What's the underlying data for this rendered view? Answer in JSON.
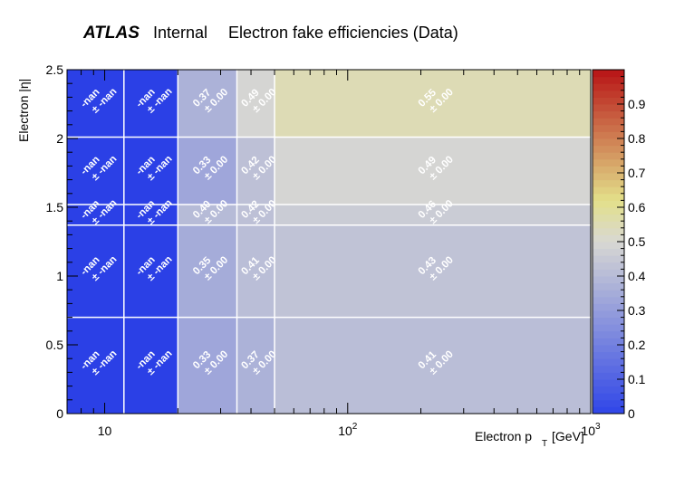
{
  "header": {
    "experiment": "ATLAS",
    "status": "Internal",
    "title": "Electron fake efficiencies (Data)"
  },
  "chart_data": {
    "type": "heatmap",
    "title": "Electron fake efficiencies (Data)",
    "xlabel": "Electron p",
    "xlabel_sub": "T",
    "xlabel_unit": "[GeV]",
    "ylabel": "Electron |η|",
    "x_scale": "log",
    "xlim": [
      7,
      1000
    ],
    "ylim": [
      0,
      2.5
    ],
    "x_edges": [
      7,
      12,
      20,
      35,
      50,
      1000
    ],
    "y_edges": [
      0,
      0.7,
      1.37,
      1.52,
      2.01,
      2.5
    ],
    "x_tick_labels": [
      {
        "value": 10,
        "base": "10",
        "exp": ""
      },
      {
        "value": 100,
        "base": "10",
        "exp": "2"
      },
      {
        "value": 1000,
        "base": "10",
        "exp": "3"
      }
    ],
    "y_tick_labels": [
      "0",
      "0.5",
      "1",
      "1.5",
      "2",
      "2.5"
    ],
    "z_range": [
      0,
      1
    ],
    "z_tick_labels": [
      "0",
      "0.1",
      "0.2",
      "0.3",
      "0.4",
      "0.5",
      "0.6",
      "0.7",
      "0.8",
      "0.9"
    ],
    "cells": [
      [
        null,
        null,
        0.33,
        0.37,
        0.41
      ],
      [
        null,
        null,
        0.35,
        0.41,
        0.43
      ],
      [
        null,
        null,
        0.4,
        0.42,
        0.46
      ],
      [
        null,
        null,
        0.33,
        0.42,
        0.49
      ],
      [
        null,
        null,
        0.37,
        0.49,
        0.55
      ]
    ],
    "cell_labels": [
      [
        [
          "-nan",
          "± -nan"
        ],
        [
          "-nan",
          "± -nan"
        ],
        [
          "0.33",
          "± 0.00"
        ],
        [
          "0.37",
          "± 0.00"
        ],
        [
          "0.41",
          "± 0.00"
        ]
      ],
      [
        [
          "-nan",
          "± -nan"
        ],
        [
          "-nan",
          "± -nan"
        ],
        [
          "0.35",
          "± 0.00"
        ],
        [
          "0.41",
          "± 0.00"
        ],
        [
          "0.43",
          "± 0.00"
        ]
      ],
      [
        [
          "-nan",
          "± -nan"
        ],
        [
          "-nan",
          "± -nan"
        ],
        [
          "0.40",
          "± 0.00"
        ],
        [
          "0.42",
          "± 0.00"
        ],
        [
          "0.46",
          "± 0.00"
        ]
      ],
      [
        [
          "-nan",
          "± -nan"
        ],
        [
          "-nan",
          "± -nan"
        ],
        [
          "0.33",
          "± 0.00"
        ],
        [
          "0.42",
          "± 0.00"
        ],
        [
          "0.49",
          "± 0.00"
        ]
      ],
      [
        [
          "-nan",
          "± -nan"
        ],
        [
          "-nan",
          "± -nan"
        ],
        [
          "0.37",
          "± 0.00"
        ],
        [
          "0.49",
          "± 0.00"
        ],
        [
          "0.55",
          "± 0.00"
        ]
      ]
    ],
    "grid": true,
    "colors": {
      "nan": "#2b40e6",
      "low": "#2f45e8",
      "mid": "#d8d8d3",
      "yellow": "#e3e08a",
      "high": "#b81416"
    }
  }
}
